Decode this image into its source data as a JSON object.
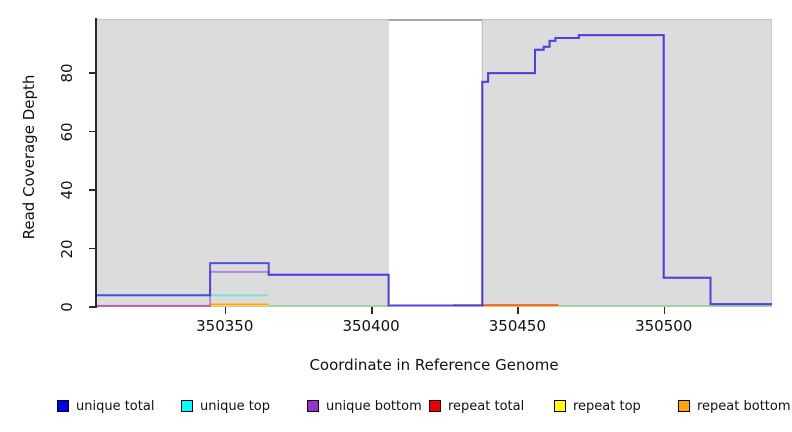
{
  "chart_data": {
    "type": "line",
    "title": "",
    "xlabel": "Coordinate in Reference Genome",
    "ylabel": "Read Coverage Depth",
    "xlim": [
      350306,
      350537
    ],
    "ylim": [
      0,
      98.5
    ],
    "x_ticks": [
      350350,
      350400,
      350450,
      350500
    ],
    "y_ticks": [
      0,
      20,
      40,
      60,
      80
    ],
    "grid": false,
    "legend_position": "bottom",
    "background_regions": [
      {
        "name": "covered-region-left",
        "x0": 350306,
        "x1": 350406,
        "fill": "#dcdcdc",
        "stroke": "#bdbdbd"
      },
      {
        "name": "uncovered-gap",
        "x0": 350406,
        "x1": 350438,
        "fill": "#ffffff",
        "stroke": "none",
        "top_border": "#8c8c8c"
      },
      {
        "name": "covered-region-right",
        "x0": 350438,
        "x1": 350537,
        "fill": "#dcdcdc",
        "stroke": "#bdbdbd"
      }
    ],
    "legend": [
      {
        "label": "unique total",
        "color": "#0000ee"
      },
      {
        "label": "unique top",
        "color": "#00ffff"
      },
      {
        "label": "unique bottom",
        "color": "#9932cc"
      },
      {
        "label": "repeat total",
        "color": "#ee0000"
      },
      {
        "label": "repeat top",
        "color": "#ffff00"
      },
      {
        "label": "repeat bottom",
        "color": "#ffa500"
      }
    ],
    "series": [
      {
        "name": "coverage-floor-overlap",
        "color": "#95d6a2",
        "opacity": 0.95,
        "width": 1.6,
        "paths": [
          [
            [
              350365,
              0.4
            ],
            [
              350406,
              0.4
            ]
          ],
          [
            [
              350464,
              0.4
            ],
            [
              350537,
              0.4
            ]
          ]
        ]
      },
      {
        "name": "repeat top",
        "color": "#ffff00",
        "opacity": 0.85,
        "width": 1.6,
        "paths": [
          [
            [
              350345,
              0.7
            ],
            [
              350365,
              0.7
            ]
          ],
          [
            [
              350438,
              0.4
            ],
            [
              350464,
              0.4
            ]
          ]
        ]
      },
      {
        "name": "repeat bottom",
        "color": "#ffa500",
        "opacity": 0.95,
        "width": 1.8,
        "paths": [
          [
            [
              350345,
              0.9
            ],
            [
              350365,
              0.9
            ]
          ],
          [
            [
              350438,
              0.5
            ],
            [
              350464,
              0.5
            ]
          ]
        ]
      },
      {
        "name": "repeat total",
        "color": "#e01010",
        "opacity": 0.5,
        "width": 1.8,
        "paths": [
          [
            [
              350306,
              0.4
            ],
            [
              350345,
              0.4
            ]
          ],
          [
            [
              350428,
              0.7
            ],
            [
              350464,
              0.7
            ]
          ]
        ]
      },
      {
        "name": "unique top",
        "color": "#62e0d4",
        "opacity": 0.75,
        "width": 2,
        "paths": [
          [
            [
              350306,
              4
            ],
            [
              350345,
              4
            ],
            [
              350365,
              4
            ]
          ]
        ]
      },
      {
        "name": "unique bottom",
        "color": "#a24fd8",
        "opacity": 0.6,
        "width": 2,
        "paths": [
          [
            [
              350306,
              0.3
            ],
            [
              350345,
              0.3
            ],
            [
              350345,
              12
            ],
            [
              350365,
              12
            ],
            [
              350365,
              11
            ],
            [
              350406,
              11
            ],
            [
              350406,
              0.5
            ],
            [
              350438,
              0.5
            ],
            [
              350438,
              77
            ],
            [
              350440,
              77
            ],
            [
              350440,
              80
            ],
            [
              350456,
              80
            ],
            [
              350456,
              88
            ],
            [
              350459,
              88
            ],
            [
              350459,
              89
            ],
            [
              350461,
              89
            ],
            [
              350461,
              91
            ],
            [
              350463,
              91
            ],
            [
              350463,
              92
            ],
            [
              350471,
              92
            ],
            [
              350471,
              93
            ],
            [
              350500,
              93
            ],
            [
              350500,
              10
            ],
            [
              350516,
              10
            ],
            [
              350516,
              1
            ],
            [
              350537,
              1
            ]
          ]
        ]
      },
      {
        "name": "unique total",
        "color": "#2f2fe0",
        "opacity": 0.8,
        "width": 2,
        "paths": [
          [
            [
              350306,
              4
            ],
            [
              350345,
              4
            ],
            [
              350345,
              15
            ],
            [
              350365,
              15
            ],
            [
              350365,
              11
            ],
            [
              350406,
              11
            ],
            [
              350406,
              0.5
            ],
            [
              350438,
              0.5
            ],
            [
              350438,
              77
            ],
            [
              350440,
              77
            ],
            [
              350440,
              80
            ],
            [
              350456,
              80
            ],
            [
              350456,
              88
            ],
            [
              350459,
              88
            ],
            [
              350459,
              89
            ],
            [
              350461,
              89
            ],
            [
              350461,
              91
            ],
            [
              350463,
              91
            ],
            [
              350463,
              92
            ],
            [
              350471,
              92
            ],
            [
              350471,
              93
            ],
            [
              350500,
              93
            ],
            [
              350500,
              10
            ],
            [
              350516,
              10
            ],
            [
              350516,
              1
            ],
            [
              350537,
              1
            ]
          ]
        ]
      }
    ]
  }
}
